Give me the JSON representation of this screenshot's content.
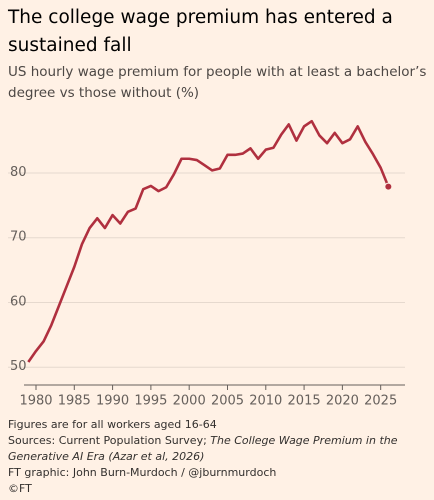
{
  "chart_data": {
    "type": "line",
    "title": "The college wage premium has entered a sustained fall",
    "subtitle": "US hourly wage premium for people with at least a bachelor’s degree vs those without (%)",
    "x": [
      1979,
      1980,
      1981,
      1982,
      1983,
      1984,
      1985,
      1986,
      1987,
      1988,
      1989,
      1990,
      1991,
      1992,
      1993,
      1994,
      1995,
      1996,
      1997,
      1998,
      1999,
      2000,
      2001,
      2002,
      2003,
      2004,
      2005,
      2006,
      2007,
      2008,
      2009,
      2010,
      2011,
      2012,
      2013,
      2014,
      2015,
      2016,
      2017,
      2018,
      2019,
      2020,
      2021,
      2022,
      2023,
      2024,
      2025,
      2026
    ],
    "values": [
      50.8,
      52.5,
      54,
      56.5,
      59.5,
      62.5,
      65.5,
      69,
      71.5,
      73,
      71.5,
      73.5,
      72.2,
      74,
      74.5,
      77.5,
      78,
      77.2,
      77.8,
      79.8,
      82.2,
      82.2,
      82,
      81.2,
      80.4,
      80.7,
      82.8,
      82.8,
      83,
      83.8,
      82.2,
      83.6,
      83.9,
      85.9,
      87.5,
      85,
      87.2,
      88,
      85.8,
      84.6,
      86.2,
      84.6,
      85.2,
      87.2,
      84.8,
      82.9,
      80.8,
      77.9
    ],
    "color": "#b0303f",
    "xlim": [
      1978.5,
      2027
    ],
    "xticks": [
      1980,
      1985,
      1990,
      1995,
      2000,
      2005,
      2010,
      2015,
      2020,
      2025
    ],
    "ylim": [
      48.8,
      90.5
    ],
    "yticks": [
      50,
      60,
      70,
      80
    ],
    "grid": true,
    "note": "Figures are for all workers aged 16-64",
    "source": "Sources: Current Population Survey;",
    "source_title": "The College Wage Premium in the Generative AI Era (Azar et al, 2026)",
    "credit": "FT graphic: John Burn-Murdoch / @jburnmurdoch",
    "logo": "©FT"
  }
}
